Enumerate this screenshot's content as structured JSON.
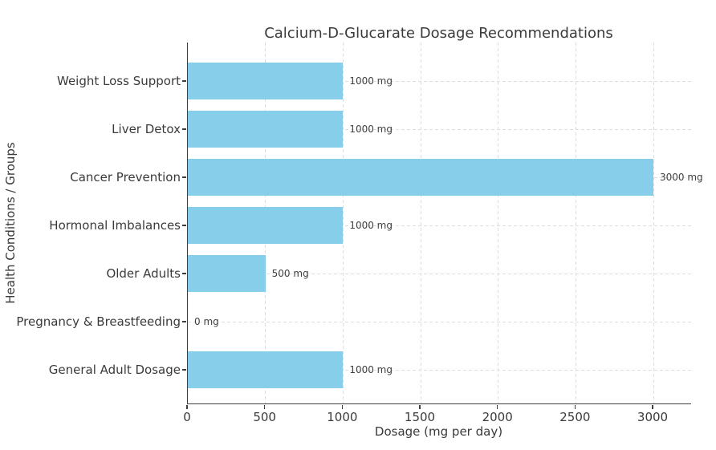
{
  "chart_data": {
    "type": "bar",
    "orientation": "horizontal",
    "title": "Calcium-D-Glucarate Dosage Recommendations",
    "xlabel": "Dosage (mg per day)",
    "ylabel": "Health Conditions / Groups",
    "categories": [
      "Weight Loss Support",
      "Liver Detox",
      "Cancer Prevention",
      "Hormonal Imbalances",
      "Older Adults",
      "Pregnancy & Breastfeeding",
      "General Adult Dosage"
    ],
    "values": [
      1000,
      1000,
      3000,
      1000,
      500,
      0,
      1000
    ],
    "bar_labels": [
      "1000 mg",
      "1000 mg",
      "3000 mg",
      "1000 mg",
      "500 mg",
      "0 mg",
      "1000 mg"
    ],
    "xticks": [
      0,
      500,
      1000,
      1500,
      2000,
      2500,
      3000
    ],
    "xtick_labels": [
      "0",
      "500",
      "1000",
      "1500",
      "2000",
      "2500",
      "3000"
    ],
    "xlim": [
      0,
      3243
    ],
    "grid": {
      "axis": "both",
      "style": "dashed"
    },
    "colors": {
      "bar": "#87CEEB",
      "grid": "#dedede",
      "text": "#3a3a3a",
      "spine": "#3f3f3f",
      "background": "#ffffff"
    }
  }
}
